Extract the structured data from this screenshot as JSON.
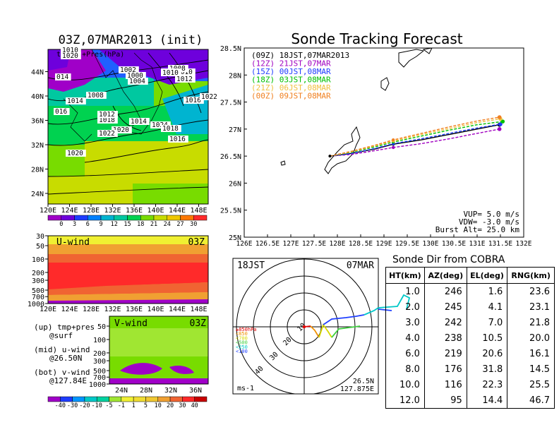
{
  "left": {
    "title": "03Z,07MAR2013 (init)",
    "legend_label": "tmp(C)+Pres(hPa)",
    "map_lon_ticks": [
      "120E",
      "124E",
      "128E",
      "132E",
      "136E",
      "140E",
      "144E",
      "148E"
    ],
    "map_lat_ticks": [
      "24N",
      "28N",
      "32N",
      "36N",
      "40N",
      "44N"
    ],
    "isobars": [
      "1010",
      "1020",
      "1002",
      "1000",
      "1004",
      "1008",
      "1010",
      "1012",
      "1014",
      "1016",
      "1018",
      "1020",
      "1022",
      "1024",
      "014",
      "016",
      "1008",
      "1010",
      "1016",
      "1018",
      "1022",
      "1010",
      "1012",
      "1014",
      "1016",
      "1020"
    ],
    "temp_colorbar": [
      "0",
      "3",
      "6",
      "9",
      "12",
      "15",
      "18",
      "21",
      "24",
      "27",
      "30"
    ],
    "temp_colors": [
      "#a000c8",
      "#6e00dc",
      "#1e3cff",
      "#0080ff",
      "#00b4d0",
      "#00c8a0",
      "#00d250",
      "#78dc00",
      "#c8dc00",
      "#f0c800",
      "#ff7800",
      "#ff2a2a"
    ],
    "uwind_title": "U-wind",
    "uwind_time": "03Z",
    "pressure_ticks": [
      "30",
      "50",
      "100",
      "200",
      "300",
      "500",
      "700",
      "1000"
    ],
    "vwind_title": "V-wind",
    "vwind_time": "03Z",
    "vwind_lat_ticks": [
      "24N",
      "28N",
      "32N",
      "36N"
    ],
    "vwind_pressure_ticks": [
      "50",
      "100",
      "200",
      "300",
      "500",
      "700",
      "1000"
    ],
    "notes": [
      [
        "(up) tmp+pres",
        "@surf"
      ],
      [
        "(mid) u-wind",
        "@26.50N"
      ],
      [
        "(bot) v-wind",
        "@127.84E"
      ]
    ],
    "wind_colorbar": [
      "-40",
      "-30",
      "-20",
      "-10",
      "-5",
      "-1",
      "1",
      "5",
      "10",
      "20",
      "30",
      "40"
    ],
    "wind_colors": [
      "#a000c8",
      "#1e3cff",
      "#0096ff",
      "#00c8c8",
      "#00d2a0",
      "#a0e632",
      "#f0f032",
      "#f0dc32",
      "#f0c832",
      "#f0a032",
      "#f06432",
      "#ff2a2a",
      "#c80000"
    ]
  },
  "track": {
    "title": "Sonde Tracking Forecast",
    "lat_ticks": [
      "28.5N",
      "28N",
      "27.5N",
      "27N",
      "26.5N",
      "26N",
      "25.5N",
      "25N"
    ],
    "lon_ticks": [
      "126E",
      "126.5E",
      "127E",
      "127.5E",
      "128E",
      "128.5E",
      "129E",
      "129.5E",
      "130E",
      "130.5E",
      "131E",
      "131.5E",
      "132E"
    ],
    "vup": "VUP=  5.0 m/s",
    "vdw": "VDW= -3.0 m/s",
    "burst": "Burst Alt= 25.0 km"
  },
  "polar": {
    "label_left": "18JST",
    "label_right": "07MAR",
    "ring_labels": [
      "10",
      "20",
      "30",
      "40"
    ],
    "unit": "ms-1",
    "lat": "26.5N",
    "lon": "127.875E",
    "legend": [
      {
        "label": "≥850hPa",
        "color": "#e00000"
      },
      {
        "label": "<850",
        "color": "#f09000"
      },
      {
        "label": "<700",
        "color": "#d8d800"
      },
      {
        "label": "<500",
        "color": "#40d040"
      },
      {
        "label": "<250",
        "color": "#00c8c8"
      },
      {
        "label": "<100",
        "color": "#2040ff"
      }
    ]
  },
  "sonde_dir": {
    "title": "Sonde Dir from COBRA",
    "headers": [
      "HT(km)",
      "AZ(deg)",
      "EL(deg)",
      "RNG(km)"
    ],
    "rows": [
      [
        "1.0",
        "246",
        "1.6",
        "23.6"
      ],
      [
        "2.0",
        "245",
        "4.1",
        "23.1"
      ],
      [
        "3.0",
        "242",
        "7.0",
        "21.8"
      ],
      [
        "4.0",
        "238",
        "10.5",
        "20.0"
      ],
      [
        "6.0",
        "219",
        "20.6",
        "16.1"
      ],
      [
        "8.0",
        "176",
        "31.8",
        "14.5"
      ],
      [
        "10.0",
        "116",
        "22.3",
        "25.5"
      ],
      [
        "12.0",
        "95",
        "14.4",
        "46.7"
      ]
    ]
  },
  "chart_data": {
    "type": "line",
    "title": "Sonde Tracking Forecast",
    "xlim": [
      126,
      132
    ],
    "ylim": [
      25,
      28.5
    ],
    "launch": {
      "x": 127.84,
      "y": 26.5
    },
    "series": [
      {
        "name": "(09Z) 18JST,07MAR2013",
        "color": "#000000",
        "x": [
          127.84,
          128.3,
          128.8,
          129.2,
          129.8,
          130.4,
          131.0,
          131.48
        ],
        "y": [
          26.5,
          26.55,
          26.63,
          26.72,
          26.8,
          26.9,
          27.0,
          27.08
        ]
      },
      {
        "name": "(12Z) 21JST,07MAR",
        "color": "#a000c0",
        "x": [
          127.84,
          128.3,
          128.8,
          129.2,
          129.8,
          130.4,
          131.0,
          131.48
        ],
        "y": [
          26.5,
          26.53,
          26.6,
          26.66,
          26.73,
          26.82,
          26.92,
          27.0
        ]
      },
      {
        "name": "(15Z) 00JST,08MAR",
        "color": "#1e3cff",
        "x": [
          127.84,
          128.3,
          128.8,
          129.2,
          129.8,
          130.4,
          131.0,
          131.5
        ],
        "y": [
          26.5,
          26.55,
          26.64,
          26.73,
          26.82,
          26.92,
          27.02,
          27.09
        ]
      },
      {
        "name": "(18Z) 03JST,08MAR",
        "color": "#00c000",
        "x": [
          127.84,
          128.3,
          128.8,
          129.2,
          129.8,
          130.4,
          131.0,
          131.55
        ],
        "y": [
          26.5,
          26.57,
          26.67,
          26.76,
          26.87,
          26.98,
          27.08,
          27.14
        ]
      },
      {
        "name": "(21Z) 06JST,08MAR",
        "color": "#f0c040",
        "x": [
          127.84,
          128.3,
          128.8,
          129.2,
          129.8,
          130.4,
          131.0,
          131.5
        ],
        "y": [
          26.5,
          26.58,
          26.69,
          26.78,
          26.9,
          27.01,
          27.12,
          27.19
        ]
      },
      {
        "name": "(00Z) 09JST,08MAR",
        "color": "#f08020",
        "x": [
          127.84,
          128.3,
          128.8,
          129.2,
          129.8,
          130.4,
          131.0,
          131.48
        ],
        "y": [
          26.5,
          26.59,
          26.7,
          26.8,
          26.92,
          27.04,
          27.15,
          27.22
        ]
      }
    ]
  }
}
